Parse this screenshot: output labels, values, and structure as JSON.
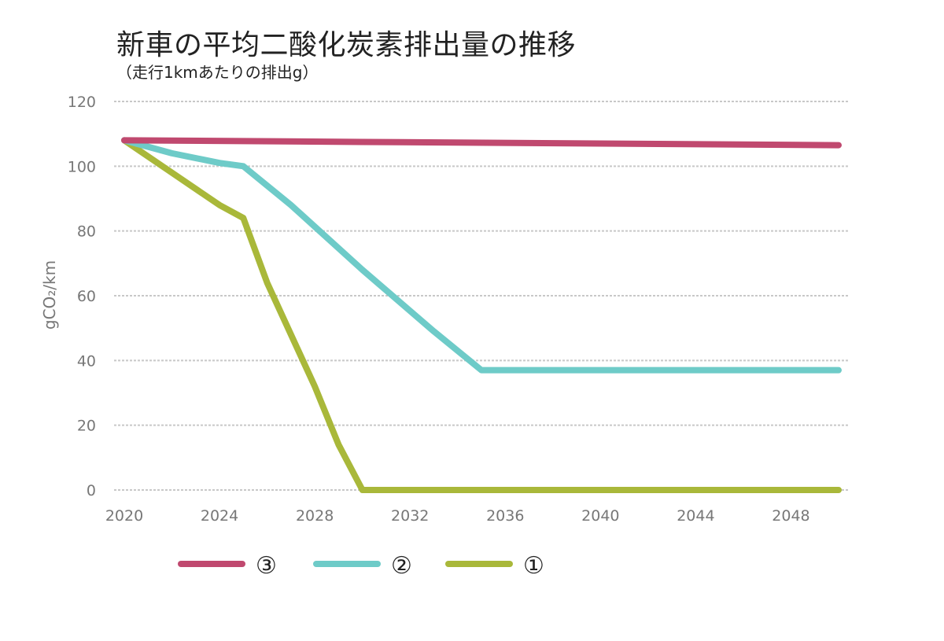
{
  "title": "新車の平均二酸化炭素排出量の推移",
  "subtitle": "（走行1kmあたりの排出g）",
  "chart_data": {
    "type": "line",
    "ylabel": "gCO₂/km",
    "ylim": [
      0,
      120
    ],
    "yticks": [
      0,
      20,
      40,
      60,
      80,
      100,
      120
    ],
    "xlim": [
      2020,
      2050
    ],
    "xticks": [
      2020,
      2024,
      2028,
      2032,
      2036,
      2040,
      2044,
      2048
    ],
    "grid": true,
    "legend_position": "bottom",
    "series": [
      {
        "name": "③",
        "color": "#c0496f",
        "x": [
          2020,
          2030,
          2040,
          2050
        ],
        "y": [
          108,
          107.5,
          107,
          106.5
        ]
      },
      {
        "name": "②",
        "color": "#6ecbc8",
        "x": [
          2020,
          2022,
          2024,
          2025,
          2027,
          2030,
          2033,
          2035,
          2036,
          2040,
          2045,
          2050
        ],
        "y": [
          108,
          104,
          101,
          100,
          88,
          68,
          49,
          37,
          37,
          37,
          37,
          37
        ]
      },
      {
        "name": "①",
        "color": "#a9b83a",
        "x": [
          2020,
          2022,
          2024,
          2025,
          2026,
          2028,
          2029,
          2030,
          2031,
          2040,
          2050
        ],
        "y": [
          108,
          98,
          88,
          84,
          64,
          32,
          14,
          0,
          0,
          0,
          0
        ]
      }
    ]
  }
}
